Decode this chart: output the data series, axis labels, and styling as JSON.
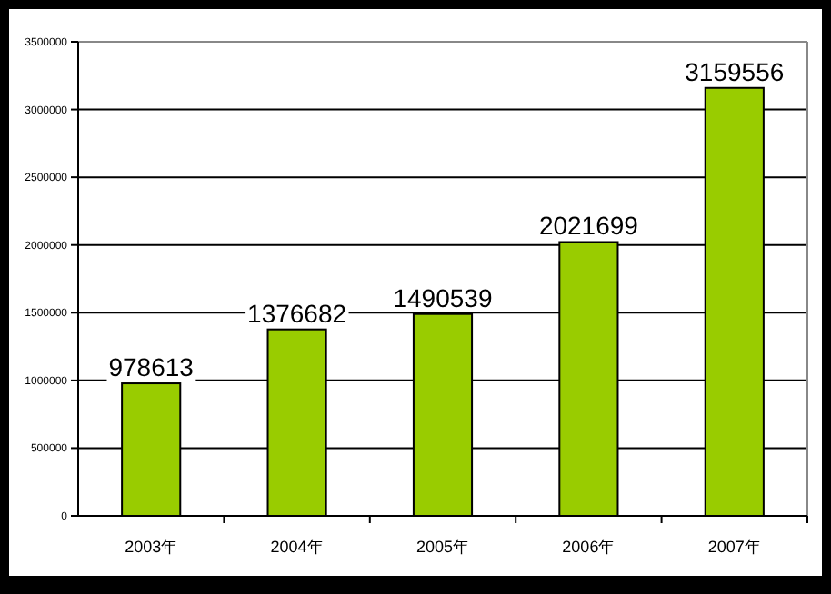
{
  "chart_data": {
    "type": "bar",
    "categories": [
      "2003年",
      "2004年",
      "2005年",
      "2006年",
      "2007年"
    ],
    "values": [
      978613,
      1376682,
      1490539,
      2021699,
      3159556
    ],
    "color": "#99cc00",
    "ylim": [
      0,
      3500000
    ],
    "yticks": [
      0,
      500000,
      1000000,
      1500000,
      2000000,
      2500000,
      3000000,
      3500000
    ],
    "grid": "y",
    "data_labels": true
  }
}
